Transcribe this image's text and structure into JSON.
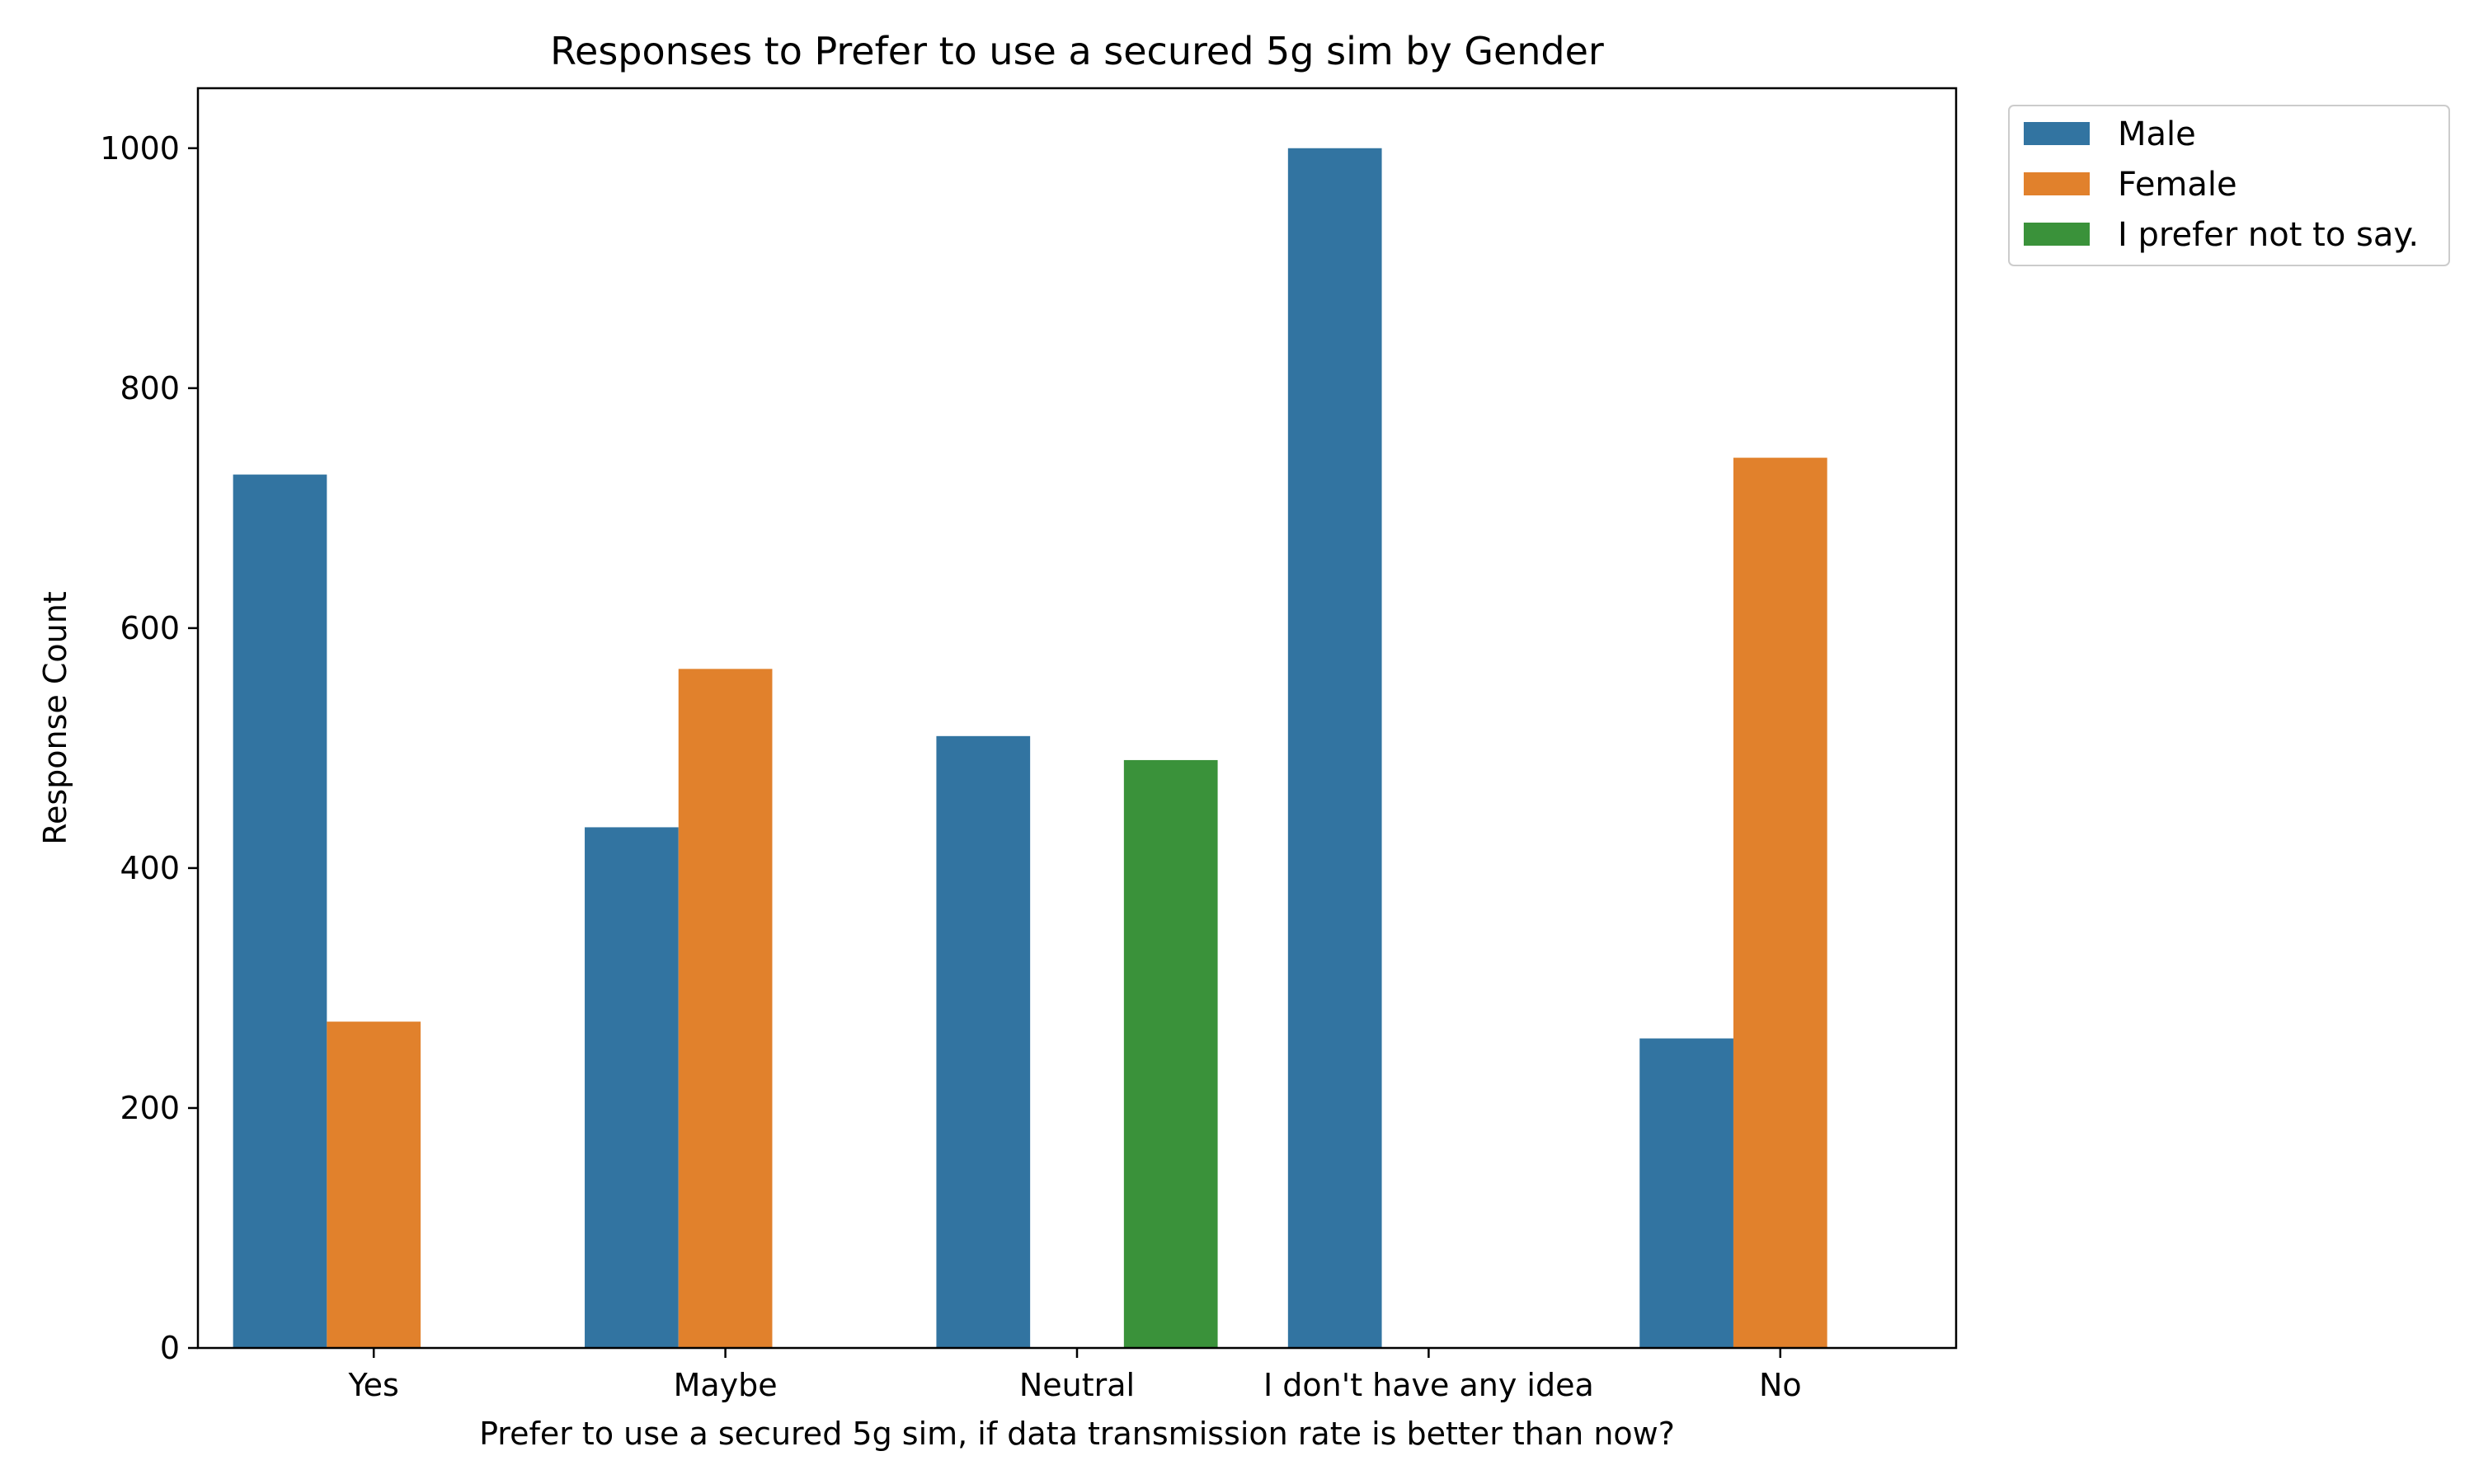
{
  "chart_data": {
    "type": "bar",
    "title": "Responses to Prefer to use a secured 5g sim by Gender",
    "xlabel": "Prefer to use a secured 5g sim, if data transmission rate is better than now?",
    "ylabel": "Response Count",
    "categories": [
      "Yes",
      "Maybe",
      "Neutral",
      "I don't have any idea",
      "No"
    ],
    "series": [
      {
        "name": "Male",
        "color": "#3274a1",
        "values": [
          728,
          434,
          510,
          1000,
          258
        ]
      },
      {
        "name": "Female",
        "color": "#e1812c",
        "values": [
          272,
          566,
          null,
          null,
          742
        ]
      },
      {
        "name": "I prefer not to say.",
        "color": "#3a923a",
        "values": [
          null,
          null,
          490,
          null,
          null
        ]
      }
    ],
    "ylim": [
      0,
      1050
    ],
    "yticks": [
      0,
      200,
      400,
      600,
      800,
      1000
    ],
    "grid": false,
    "legend_position": "outside-top-right"
  }
}
